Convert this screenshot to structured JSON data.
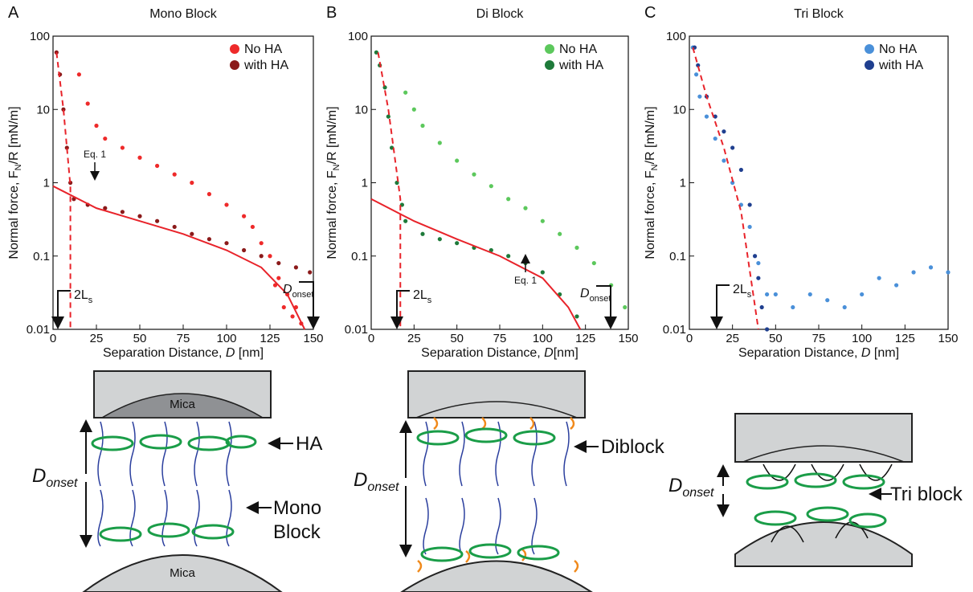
{
  "chart_data": [
    {
      "type": "scatter",
      "panel": "A",
      "title": "Mono Block",
      "log_y": true,
      "legend": "upper right",
      "x_label": [
        "Separation Distance, ",
        "D",
        " [nm]"
      ],
      "y_label": [
        "Normal force, F",
        "N",
        "/R [mN/m]"
      ],
      "xlim": [
        0,
        150
      ],
      "ylim": [
        0.01,
        100
      ],
      "xticks": [
        0,
        25,
        50,
        75,
        100,
        125,
        150
      ],
      "yticks": [
        0.01,
        0.1,
        1,
        10,
        100
      ],
      "series": [
        {
          "name": "No HA",
          "color": "#ee2a2a",
          "x": [
            15,
            20,
            25,
            30,
            40,
            50,
            60,
            70,
            80,
            90,
            100,
            110,
            115,
            120,
            125,
            130,
            135,
            140,
            128,
            133,
            138,
            143
          ],
          "values": [
            30,
            12,
            6,
            4,
            3,
            2.2,
            1.7,
            1.3,
            1.0,
            0.7,
            0.5,
            0.35,
            0.25,
            0.15,
            0.1,
            0.05,
            0.03,
            0.02,
            0.04,
            0.02,
            0.015,
            0.012
          ]
        },
        {
          "name": "with HA",
          "color": "#8b1a1a",
          "x": [
            2,
            4,
            6,
            8,
            10,
            12,
            20,
            30,
            40,
            50,
            60,
            70,
            80,
            90,
            100,
            110,
            120,
            130,
            140,
            148
          ],
          "values": [
            60,
            30,
            10,
            3,
            1,
            0.6,
            0.5,
            0.45,
            0.4,
            0.35,
            0.3,
            0.25,
            0.2,
            0.17,
            0.15,
            0.12,
            0.1,
            0.08,
            0.07,
            0.06
          ]
        }
      ],
      "fits": [
        {
          "color": "#e8232a",
          "dashed": true,
          "x": [
            2,
            6,
            10,
            10
          ],
          "values": [
            60,
            10,
            0.9,
            0.01
          ]
        },
        {
          "color": "#e8232a",
          "dashed": false,
          "x": [
            0,
            25,
            50,
            75,
            100,
            120,
            135,
            145
          ],
          "values": [
            0.9,
            0.45,
            0.3,
            0.2,
            0.12,
            0.07,
            0.03,
            0.01
          ]
        }
      ],
      "annotations": [
        {
          "text": "2L",
          "sub": "s"
        },
        {
          "text": "D",
          "sub": "onset"
        },
        {
          "text": "Eq. 1"
        }
      ]
    },
    {
      "type": "scatter",
      "panel": "B",
      "title": "Di Block",
      "log_y": true,
      "legend": "upper right",
      "x_label": [
        "Separation Distance, ",
        "D",
        "[nm]"
      ],
      "y_label": [
        "Normal force, F",
        "N",
        "/R [mN/m]"
      ],
      "xlim": [
        0,
        150
      ],
      "ylim": [
        0.01,
        100
      ],
      "xticks": [
        0,
        25,
        50,
        75,
        100,
        125,
        150
      ],
      "yticks": [
        0.01,
        0.1,
        1,
        10,
        100
      ],
      "series": [
        {
          "name": "No HA",
          "color": "#5cc85c",
          "x": [
            20,
            25,
            30,
            40,
            50,
            60,
            70,
            80,
            90,
            100,
            110,
            120,
            130,
            140,
            148
          ],
          "values": [
            17,
            10,
            6,
            3.5,
            2,
            1.3,
            0.9,
            0.6,
            0.45,
            0.3,
            0.2,
            0.13,
            0.08,
            0.04,
            0.02
          ]
        },
        {
          "name": "with HA",
          "color": "#1e7a3a",
          "x": [
            3,
            5,
            8,
            10,
            12,
            15,
            18,
            20,
            30,
            40,
            50,
            60,
            70,
            80,
            90,
            100,
            110,
            120
          ],
          "values": [
            60,
            40,
            20,
            8,
            3,
            1,
            0.5,
            0.3,
            0.2,
            0.17,
            0.15,
            0.13,
            0.12,
            0.1,
            0.08,
            0.06,
            0.03,
            0.015
          ]
        }
      ],
      "fits": [
        {
          "color": "#e8232a",
          "dashed": true,
          "x": [
            4,
            10,
            17,
            17
          ],
          "values": [
            60,
            10,
            0.6,
            0.01
          ]
        },
        {
          "color": "#e8232a",
          "dashed": false,
          "x": [
            0,
            25,
            50,
            75,
            100,
            115,
            122
          ],
          "values": [
            0.6,
            0.3,
            0.17,
            0.1,
            0.05,
            0.02,
            0.01
          ]
        }
      ],
      "annotations": [
        {
          "text": "2L",
          "sub": "s"
        },
        {
          "text": "D",
          "sub": "onset"
        },
        {
          "text": "Eq. 1"
        }
      ]
    },
    {
      "type": "scatter",
      "panel": "C",
      "title": "Tri Block",
      "log_y": true,
      "legend": "upper right",
      "x_label": [
        "Separation Distance, ",
        "D",
        " [nm]"
      ],
      "y_label": [
        "Normal force, F",
        "N",
        "/R [mN/m]"
      ],
      "xlim": [
        0,
        150
      ],
      "ylim": [
        0.01,
        100
      ],
      "xticks": [
        0,
        25,
        50,
        75,
        100,
        125,
        150
      ],
      "yticks": [
        0.01,
        0.1,
        1,
        10,
        100
      ],
      "series": [
        {
          "name": "No HA",
          "color": "#4a90d9",
          "x": [
            2,
            4,
            6,
            10,
            15,
            20,
            25,
            30,
            35,
            40,
            45,
            50,
            60,
            70,
            80,
            90,
            100,
            110,
            120,
            130,
            140,
            150
          ],
          "values": [
            70,
            30,
            15,
            8,
            4,
            2,
            1,
            0.5,
            0.25,
            0.08,
            0.03,
            0.03,
            0.02,
            0.03,
            0.025,
            0.02,
            0.03,
            0.05,
            0.04,
            0.06,
            0.07,
            0.06
          ]
        },
        {
          "name": "with HA",
          "color": "#1f3f8f",
          "x": [
            3,
            5,
            10,
            15,
            20,
            25,
            30,
            35,
            38,
            40,
            42,
            45
          ],
          "values": [
            70,
            40,
            15,
            8,
            5,
            3,
            1.5,
            0.5,
            0.1,
            0.05,
            0.02,
            0.01
          ]
        }
      ],
      "fits": [
        {
          "color": "#e8232a",
          "dashed": true,
          "x": [
            2,
            10,
            20,
            30,
            40
          ],
          "values": [
            70,
            15,
            3,
            0.4,
            0.01
          ]
        }
      ],
      "annotations": [
        {
          "text": "2L",
          "sub": "s"
        }
      ]
    }
  ],
  "diagrams": [
    {
      "top": "Mica",
      "bottom": "Mica",
      "distance": [
        "D",
        "onset"
      ],
      "labels": [
        "HA",
        "Mono",
        "Block"
      ]
    },
    {
      "distance": [
        "D",
        "onset"
      ],
      "labels": [
        "Diblock"
      ]
    },
    {
      "distance": [
        "D",
        "onset"
      ],
      "labels": [
        "Tri block"
      ]
    }
  ]
}
